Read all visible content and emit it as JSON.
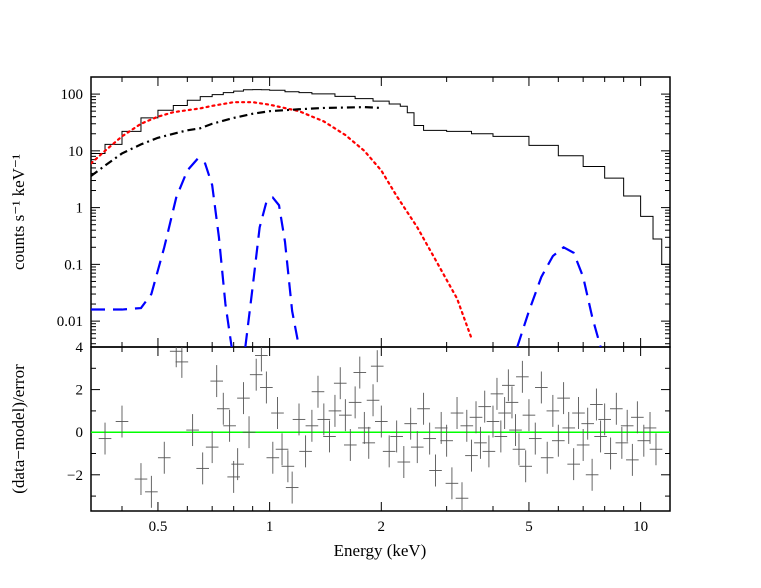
{
  "chart_data": [
    {
      "type": "line",
      "panel": "spectrum",
      "ylabel": "counts s⁻¹ keV⁻¹",
      "xscale": "log",
      "yscale": "log",
      "xlim": [
        0.33,
        12.0
      ],
      "ylim": [
        0.0035,
        200
      ],
      "x_ticks": [
        0.5,
        1,
        2,
        5,
        10
      ],
      "y_ticks": [
        0.01,
        0.1,
        1,
        10,
        100
      ],
      "y_tick_labels": [
        "0.01",
        "0.1",
        "1",
        "10",
        "100"
      ],
      "grid": false,
      "colors": {
        "data": "#000000",
        "total_model": "#000000",
        "thermal": "#ff0000",
        "power_law": "#000000",
        "lines": "#0000ff"
      },
      "series": [
        {
          "style": "solid-step",
          "color": "#000000",
          "x": [
            0.33,
            0.36,
            0.4,
            0.45,
            0.5,
            0.55,
            0.6,
            0.65,
            0.7,
            0.75,
            0.8,
            0.85,
            0.9,
            0.95,
            1.0,
            1.1,
            1.2,
            1.3,
            1.5,
            1.7,
            1.9,
            2.1,
            2.25,
            2.35,
            2.45,
            2.6,
            3.0,
            3.5,
            4.0,
            5.0,
            6.0,
            7.0,
            8.0,
            9.0,
            10.0,
            10.8,
            11.4,
            12.0
          ],
          "y": [
            9,
            13,
            22,
            38,
            52,
            63,
            78,
            90,
            98,
            106,
            113,
            119,
            120,
            119,
            117,
            110,
            106,
            101,
            91,
            83,
            75,
            67,
            61,
            47,
            28,
            23,
            22,
            20,
            18,
            12.5,
            8.2,
            5.3,
            3.3,
            1.6,
            0.7,
            0.28,
            0.1,
            0.04
          ]
        },
        {
          "style": "dotted",
          "color": "#ff0000",
          "x": [
            0.33,
            0.36,
            0.4,
            0.45,
            0.5,
            0.55,
            0.6,
            0.65,
            0.7,
            0.8,
            0.9,
            1.0,
            1.2,
            1.4,
            1.6,
            1.8,
            2.0,
            2.2,
            2.5,
            2.8,
            3.2,
            3.5
          ],
          "y": [
            6,
            10,
            18,
            30,
            40,
            48,
            52,
            56,
            62,
            72,
            72,
            65,
            50,
            33,
            19,
            10,
            4.5,
            1.6,
            0.45,
            0.12,
            0.025,
            0.005
          ]
        },
        {
          "style": "dash-dot",
          "color": "#000000",
          "x": [
            0.33,
            0.36,
            0.4,
            0.45,
            0.5,
            0.55,
            0.6,
            0.65,
            0.7,
            0.8,
            0.9,
            1.0,
            1.2,
            1.4,
            1.6,
            1.8,
            2.0
          ],
          "y": [
            3.6,
            5.5,
            9,
            13,
            17,
            20,
            23,
            25,
            30,
            38,
            45,
            50,
            54,
            57,
            58,
            59,
            57
          ]
        },
        {
          "style": "dashed",
          "color": "#0000ff",
          "x": [
            0.33,
            0.4,
            0.45,
            0.48,
            0.52,
            0.56,
            0.6,
            0.64,
            0.67,
            0.7,
            0.73,
            0.76,
            0.79
          ],
          "y": [
            0.016,
            0.016,
            0.017,
            0.03,
            0.2,
            1.5,
            4.5,
            7.3,
            6.0,
            2.5,
            0.3,
            0.02,
            0.0035
          ]
        },
        {
          "style": "dashed",
          "color": "#0000ff",
          "x": [
            0.86,
            0.9,
            0.94,
            0.98,
            1.02,
            1.06,
            1.1,
            1.15,
            1.2
          ],
          "y": [
            0.0035,
            0.04,
            0.45,
            1.25,
            1.5,
            1.1,
            0.25,
            0.015,
            0.0035
          ]
        },
        {
          "style": "dashed",
          "color": "#0000ff",
          "x": [
            4.65,
            5.0,
            5.4,
            5.8,
            6.2,
            6.6,
            7.0,
            7.4,
            7.8
          ],
          "y": [
            0.0035,
            0.015,
            0.06,
            0.14,
            0.2,
            0.16,
            0.06,
            0.012,
            0.0035
          ]
        }
      ]
    },
    {
      "type": "scatter",
      "panel": "residuals",
      "xlabel": "Energy (keV)",
      "ylabel": "(data−model)/error",
      "xscale": "log",
      "xlim": [
        0.33,
        12.0
      ],
      "ylim": [
        -3.7,
        4
      ],
      "x_ticks": [
        0.5,
        1,
        2,
        5,
        10
      ],
      "x_tick_labels": [
        "0.5",
        "1",
        "2",
        "5",
        "10"
      ],
      "y_ticks": [
        -2,
        0,
        2,
        4
      ],
      "y_tick_labels": [
        "−2",
        "0",
        "2",
        "4"
      ],
      "zero_line_color": "#00ff00",
      "points_color": "#555555",
      "x": [
        0.36,
        0.4,
        0.45,
        0.48,
        0.52,
        0.56,
        0.58,
        0.62,
        0.66,
        0.7,
        0.72,
        0.75,
        0.78,
        0.8,
        0.82,
        0.85,
        0.88,
        0.92,
        0.95,
        0.98,
        1.02,
        1.05,
        1.08,
        1.12,
        1.15,
        1.2,
        1.25,
        1.3,
        1.35,
        1.4,
        1.45,
        1.5,
        1.55,
        1.6,
        1.65,
        1.7,
        1.75,
        1.8,
        1.85,
        1.9,
        1.95,
        2.0,
        2.1,
        2.2,
        2.3,
        2.4,
        2.5,
        2.6,
        2.7,
        2.8,
        2.9,
        3.0,
        3.1,
        3.2,
        3.3,
        3.4,
        3.5,
        3.6,
        3.7,
        3.8,
        3.9,
        4.0,
        4.1,
        4.2,
        4.3,
        4.4,
        4.5,
        4.6,
        4.7,
        4.8,
        4.9,
        5.0,
        5.2,
        5.4,
        5.6,
        5.8,
        6.0,
        6.2,
        6.4,
        6.6,
        6.8,
        7.0,
        7.2,
        7.4,
        7.6,
        7.8,
        8.0,
        8.3,
        8.6,
        8.9,
        9.2,
        9.5,
        9.8,
        10.2,
        10.6,
        11.0
      ],
      "y": [
        -0.3,
        0.5,
        -2.2,
        -2.8,
        -1.2,
        3.8,
        3.3,
        0.1,
        -1.7,
        -0.7,
        2.4,
        1.1,
        0.3,
        -2.1,
        -1.5,
        1.6,
        0.0,
        2.7,
        3.6,
        2.1,
        -1.2,
        0.9,
        -0.8,
        -1.6,
        -2.6,
        0.6,
        -0.9,
        0.3,
        1.9,
        0.6,
        -0.2,
        1.0,
        2.3,
        0.8,
        -0.6,
        1.4,
        2.8,
        0.2,
        -0.5,
        1.5,
        3.1,
        0.5,
        -0.9,
        -0.2,
        -1.4,
        0.4,
        -0.7,
        1.1,
        -0.3,
        -1.8,
        0.2,
        -0.4,
        -2.4,
        0.9,
        -3.1,
        0.3,
        -1.1,
        0.7,
        -0.5,
        1.2,
        -0.9,
        0.5,
        1.8,
        -0.2,
        0.9,
        2.2,
        1.4,
        0.1,
        -0.8,
        2.6,
        -1.6,
        0.8,
        -0.3,
        2.1,
        -1.2,
        1.0,
        -0.4,
        1.6,
        0.2,
        -1.5,
        0.9,
        -0.6,
        0.4,
        -2.0,
        1.3,
        -0.2,
        0.6,
        -1.0,
        1.1,
        -0.5,
        0.3,
        -1.3,
        0.7,
        -0.4,
        0.2,
        -0.8
      ],
      "yerr": 0.75
    }
  ]
}
